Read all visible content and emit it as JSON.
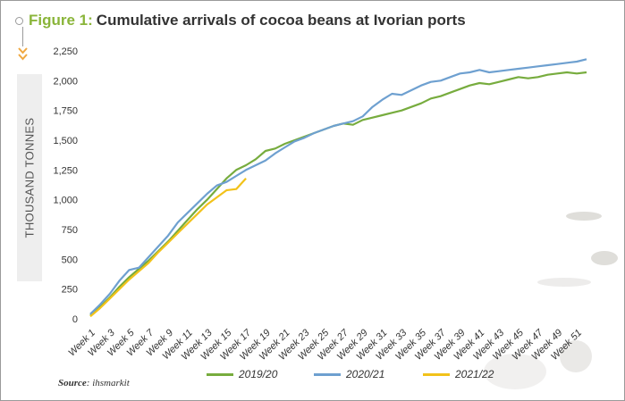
{
  "header": {
    "title_prefix": "Figure 1:",
    "title": "Cumulative arrivals of cocoa beans at Ivorian ports"
  },
  "footer": {
    "source_label": "Source",
    "source_value": ": ihsmarkit"
  },
  "colors": {
    "series_2019_20": "#77ac3e",
    "series_2020_21": "#6ea0d0",
    "series_2021_22": "#f2c21a",
    "accent": "#8ab53a",
    "chevron": "#f0a840"
  },
  "chart_data": {
    "type": "line",
    "title": "Cumulative arrivals of cocoa beans at Ivorian ports",
    "xlabel": "",
    "ylabel": "THOUSAND TONNES",
    "ylim": [
      0,
      2250
    ],
    "yticks": [
      0,
      250,
      500,
      750,
      "1,000",
      "1,250",
      "1,500",
      "1,750",
      "2,000",
      "2,250"
    ],
    "ytick_values": [
      0,
      250,
      500,
      750,
      1000,
      1250,
      1500,
      1750,
      2000,
      2250
    ],
    "x_tick_labels": [
      "Week 1",
      "Week 3",
      "Week 5",
      "Week 7",
      "Week 9",
      "Week 11",
      "Week 13",
      "Week 15",
      "Week 17",
      "Week 19",
      "Week 21",
      "Week 23",
      "Week 25",
      "Week 27",
      "Week 29",
      "Week 31",
      "Week 33",
      "Week 35",
      "Week 37",
      "Week 39",
      "Week 41",
      "Week 43",
      "Week 45",
      "Week 47",
      "Week 49",
      "Week 51"
    ],
    "x_tick_weeks": [
      1,
      3,
      5,
      7,
      9,
      11,
      13,
      15,
      17,
      19,
      21,
      23,
      25,
      27,
      29,
      31,
      33,
      35,
      37,
      39,
      41,
      43,
      45,
      47,
      49,
      51
    ],
    "xlim": [
      1,
      52
    ],
    "grid": false,
    "legend_position": "bottom",
    "series": [
      {
        "name": "2019/20",
        "x": [
          1,
          2,
          3,
          4,
          5,
          6,
          7,
          8,
          9,
          10,
          11,
          12,
          13,
          14,
          15,
          16,
          17,
          18,
          19,
          20,
          21,
          22,
          23,
          24,
          25,
          26,
          27,
          28,
          29,
          30,
          31,
          32,
          33,
          34,
          35,
          36,
          37,
          38,
          39,
          40,
          41,
          42,
          43,
          44,
          45,
          46,
          47,
          48,
          49,
          50,
          51,
          52
        ],
        "values": [
          30,
          100,
          180,
          270,
          350,
          420,
          490,
          570,
          650,
          740,
          830,
          920,
          1000,
          1090,
          1180,
          1250,
          1290,
          1340,
          1410,
          1430,
          1470,
          1500,
          1530,
          1560,
          1590,
          1620,
          1640,
          1630,
          1670,
          1690,
          1710,
          1730,
          1750,
          1780,
          1810,
          1850,
          1870,
          1900,
          1930,
          1960,
          1980,
          1970,
          1990,
          2010,
          2030,
          2020,
          2030,
          2050,
          2060,
          2070,
          2060,
          2070
        ]
      },
      {
        "name": "2020/21",
        "x": [
          1,
          2,
          3,
          4,
          5,
          6,
          7,
          8,
          9,
          10,
          11,
          12,
          13,
          14,
          15,
          16,
          17,
          18,
          19,
          20,
          21,
          22,
          23,
          24,
          25,
          26,
          27,
          28,
          29,
          30,
          31,
          32,
          33,
          34,
          35,
          36,
          37,
          38,
          39,
          40,
          41,
          42,
          43,
          44,
          45,
          46,
          47,
          48,
          49,
          50,
          51,
          52
        ],
        "values": [
          40,
          120,
          210,
          320,
          410,
          430,
          520,
          610,
          700,
          810,
          890,
          970,
          1050,
          1120,
          1150,
          1200,
          1250,
          1290,
          1330,
          1390,
          1440,
          1490,
          1520,
          1560,
          1590,
          1620,
          1640,
          1660,
          1700,
          1780,
          1840,
          1890,
          1880,
          1920,
          1960,
          1990,
          2000,
          2030,
          2060,
          2070,
          2090,
          2070,
          2080,
          2090,
          2100,
          2110,
          2120,
          2130,
          2140,
          2150,
          2160,
          2180
        ]
      },
      {
        "name": "2021/22",
        "x": [
          1,
          2,
          3,
          4,
          5,
          6,
          7,
          8,
          9,
          10,
          11,
          12,
          13,
          14,
          15,
          16,
          17
        ],
        "values": [
          20,
          90,
          170,
          250,
          330,
          400,
          470,
          560,
          640,
          720,
          800,
          880,
          960,
          1020,
          1080,
          1090,
          1180
        ]
      }
    ]
  }
}
